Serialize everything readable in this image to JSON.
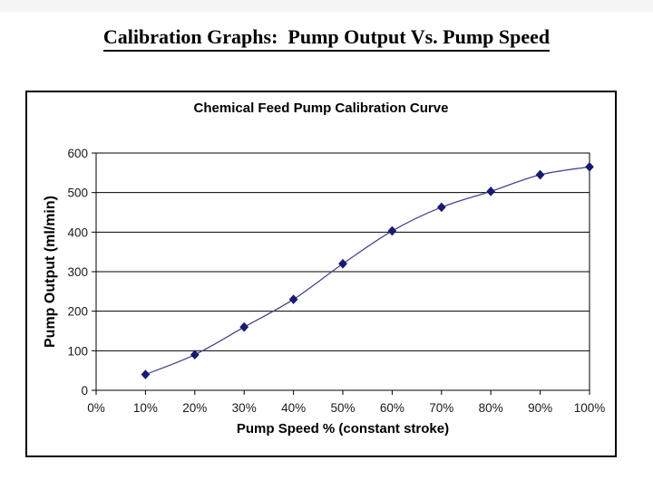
{
  "page": {
    "title": "Calibration Graphs:  Pump Output Vs. Pump Speed"
  },
  "chart_data": {
    "type": "line",
    "title": "Chemical Feed Pump Calibration Curve",
    "xlabel": "Pump Speed % (constant stroke)",
    "ylabel": "Pump Output (ml/min)",
    "x_tick_values": [
      0,
      10,
      20,
      30,
      40,
      50,
      60,
      70,
      80,
      90,
      100
    ],
    "x_tick_labels": [
      "0%",
      "10%",
      "20%",
      "30%",
      "40%",
      "50%",
      "60%",
      "70%",
      "80%",
      "90%",
      "100%"
    ],
    "y_tick_values": [
      0,
      100,
      200,
      300,
      400,
      500,
      600
    ],
    "xlim": [
      0,
      100
    ],
    "ylim": [
      0,
      600
    ],
    "grid": true,
    "legend": "none",
    "marker": "diamond",
    "colors": {
      "line": "#44448c",
      "marker": "#1a1a70",
      "grid": "#000000",
      "axis": "#000000",
      "tick_text": "#1a1a1a"
    },
    "series": [
      {
        "name": "Pump Output",
        "x": [
          10,
          20,
          30,
          40,
          50,
          60,
          70,
          80,
          90,
          100
        ],
        "y": [
          40,
          90,
          160,
          230,
          320,
          403,
          463,
          503,
          545,
          565
        ]
      }
    ]
  }
}
